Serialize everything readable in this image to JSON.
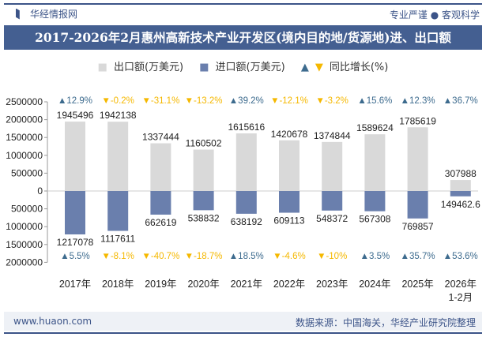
{
  "header": {
    "brand": "华经情报网",
    "slogan": "专业严谨 ● 客观科学",
    "title": "2017-2026年2月惠州高新技术产业开发区(境内目的地/货源地)进、出口额"
  },
  "footer": {
    "website": "www.huaon.com",
    "source": "数据来源：中国海关，华经产业研究院整理"
  },
  "colors": {
    "export": "#d9d9d9",
    "import": "#6a7fad",
    "up": "#3d6b8e",
    "down": "#f5b800"
  },
  "chart_data": {
    "type": "bar",
    "title": "2017-2026年2月惠州高新技术产业开发区(境内目的地/货源地)进、出口额",
    "legend": [
      "出口额(万美元)",
      "进口额(万美元)",
      "同比增长(%)"
    ],
    "legend_placement": "top",
    "categories": [
      "2017年",
      "2018年",
      "2019年",
      "2020年",
      "2021年",
      "2022年",
      "2023年",
      "2024年",
      "2025年",
      "2026年\n1-2月"
    ],
    "ylim": [
      -2000000,
      2500000
    ],
    "yticks": [
      2500000,
      2000000,
      1500000,
      1000000,
      500000,
      0,
      -500000,
      -1000000,
      -1500000,
      -2000000
    ],
    "ytick_labels": [
      "2500000",
      "2000000",
      "1500000",
      "1000000",
      "500000",
      "0",
      "500000",
      "1000000",
      "1500000",
      "2000000"
    ],
    "series": [
      {
        "name": "出口额(万美元)",
        "values": [
          1945496,
          1942138,
          1337444,
          1160502,
          1615616,
          1420678,
          1374844,
          1589624,
          1785619,
          307988
        ],
        "labels": [
          "1945496",
          "1942138",
          "1337444",
          "1160502",
          "1615616",
          "1420678",
          "1374844",
          "1589624",
          "1785619",
          "307988"
        ],
        "growth": [
          "12.9%",
          "-0.2%",
          "-31.1%",
          "-13.2%",
          "39.2%",
          "-12.1%",
          "-3.2%",
          "15.6%",
          "12.3%",
          "36.7%"
        ]
      },
      {
        "name": "进口额(万美元)",
        "values": [
          1217078,
          1117611,
          662619,
          538832,
          638192,
          609113,
          548372,
          567308,
          769857,
          149462.6
        ],
        "labels": [
          "1217078",
          "1117611",
          "662619",
          "538832",
          "638192",
          "609113",
          "548372",
          "567308",
          "769857",
          "149462.6"
        ],
        "growth": [
          "5.5%",
          "-8.1%",
          "-40.7%",
          "-18.7%",
          "18.5%",
          "-4.6%",
          "-10%",
          "3.5%",
          "35.7%",
          "53.6%"
        ]
      }
    ]
  }
}
